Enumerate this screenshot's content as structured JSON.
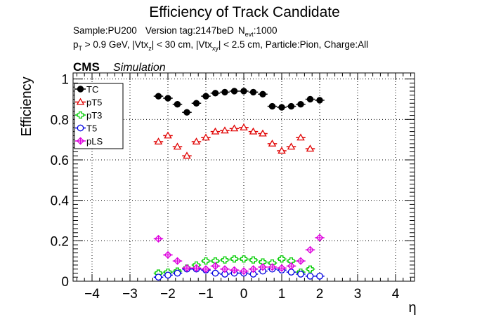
{
  "chart_data": {
    "type": "scatter",
    "title": "Efficiency of Track Candidate",
    "subtitle_line1": {
      "sample": "Sample:PU200",
      "version": "Version tag:2147beD",
      "nevt_main": "N",
      "nevt_sub": "evt",
      "nevt_value": ":1000"
    },
    "subtitle_line2": {
      "p": "p",
      "p_sub": "T",
      "part_a": " > 0.9 GeV, |Vtx",
      "z_sub": "z",
      "part_b": "| < 30 cm, |Vtx",
      "xy_sub": "xy",
      "part_c": "| < 2.5 cm, Particle:Pion, Charge:All"
    },
    "cms_label": "CMS",
    "cms_sub": "Simulation",
    "xlabel": "η",
    "ylabel": "Efficiency",
    "xlim": [
      -4.5,
      4.5
    ],
    "ylim": [
      0,
      1.03
    ],
    "x_ticks": [
      -4,
      -3,
      -2,
      -1,
      0,
      1,
      2,
      3,
      4
    ],
    "y_ticks": [
      0,
      0.2,
      0.4,
      0.6,
      0.8,
      1
    ],
    "grid": true,
    "legend_position": "top-left",
    "bin_halfwidth": 0.125,
    "x": [
      -2.25,
      -2.0,
      -1.75,
      -1.5,
      -1.25,
      -1.0,
      -0.75,
      -0.5,
      -0.25,
      0.0,
      0.25,
      0.5,
      0.75,
      1.0,
      1.25,
      1.5,
      1.75,
      2.0,
      2.25
    ],
    "series": [
      {
        "name": "TC",
        "marker": "filled-circle",
        "color": "#000000",
        "values": [
          0.915,
          0.905,
          0.875,
          0.835,
          0.88,
          0.915,
          0.93,
          0.935,
          0.94,
          0.94,
          0.935,
          0.925,
          0.865,
          0.86,
          0.865,
          0.875,
          0.9,
          0.895,
          null
        ]
      },
      {
        "name": "pT5",
        "marker": "open-triangle",
        "color": "#e00000",
        "values": [
          0.69,
          0.72,
          0.665,
          0.62,
          0.69,
          0.71,
          0.74,
          0.745,
          0.755,
          0.76,
          0.74,
          0.73,
          0.68,
          0.645,
          0.665,
          0.71,
          0.655,
          null,
          null
        ]
      },
      {
        "name": "pT3",
        "marker": "open-cross",
        "color": "#00cc00",
        "values": [
          0.04,
          0.045,
          0.05,
          0.065,
          0.08,
          0.1,
          0.1,
          0.105,
          0.11,
          0.11,
          0.105,
          0.095,
          0.09,
          0.11,
          0.1,
          0.045,
          0.06,
          null,
          null
        ]
      },
      {
        "name": "T5",
        "marker": "open-circle",
        "color": "#0000e0",
        "values": [
          0.02,
          0.03,
          0.04,
          0.06,
          0.06,
          0.055,
          0.04,
          0.035,
          0.04,
          0.04,
          0.035,
          0.05,
          0.06,
          0.055,
          0.045,
          0.035,
          0.025,
          0.025,
          null
        ]
      },
      {
        "name": "pLS",
        "marker": "open-diamond-cross",
        "color": "#dd00dd",
        "values": [
          0.21,
          0.13,
          0.1,
          0.065,
          0.065,
          0.06,
          0.075,
          0.06,
          0.055,
          0.05,
          0.06,
          0.07,
          0.07,
          0.065,
          0.075,
          0.1,
          0.155,
          0.215,
          null
        ]
      }
    ]
  }
}
